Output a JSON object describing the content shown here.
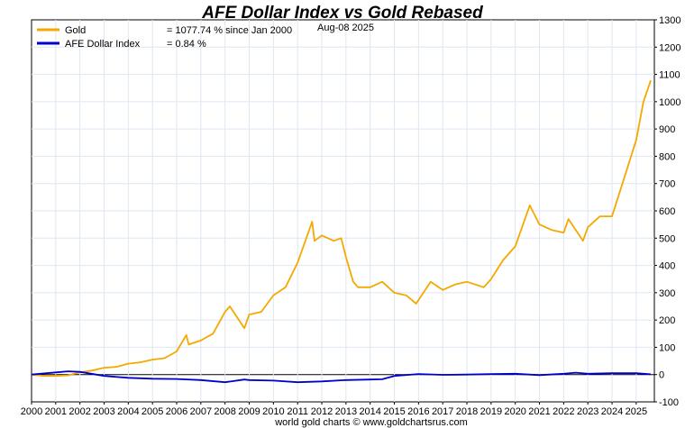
{
  "colors": {
    "gold": "#f5a800",
    "afe": "#0000cc",
    "title": "#1a1acc",
    "grid": "#dde6f0",
    "zero_line": "#000000"
  },
  "chart_data": {
    "type": "line",
    "title": "AFE Dollar Index vs Gold Rebased",
    "date_label": "Aug-08  2025",
    "footer": "world gold charts © www.goldchartsrus.com",
    "xlim": [
      2000.0,
      2025.75
    ],
    "ylim": [
      -100,
      1300
    ],
    "x_ticks": [
      "2000",
      "2001",
      "2002",
      "2003",
      "2004",
      "2005",
      "2006",
      "2007",
      "2008",
      "2009",
      "2010",
      "2011",
      "2012",
      "2013",
      "2014",
      "2015",
      "2016",
      "2017",
      "2018",
      "2019",
      "2020",
      "2021",
      "2022",
      "2023",
      "2024",
      "2025"
    ],
    "y_ticks": [
      -100,
      0,
      100,
      200,
      300,
      400,
      500,
      600,
      700,
      800,
      900,
      1000,
      1100,
      1200,
      1300
    ],
    "y_axis_position": "right",
    "grid": true,
    "legend_position": "top-left",
    "series": [
      {
        "name": "Gold",
        "legend_value": "= 1077.74 % since Jan 2000",
        "x": [
          2000.0,
          2000.5,
          2001.0,
          2001.5,
          2002.0,
          2002.5,
          2003.0,
          2003.5,
          2004.0,
          2004.5,
          2005.0,
          2005.5,
          2006.0,
          2006.4,
          2006.5,
          2007.0,
          2007.5,
          2008.0,
          2008.2,
          2008.8,
          2009.0,
          2009.5,
          2010.0,
          2010.5,
          2011.0,
          2011.6,
          2011.7,
          2012.0,
          2012.5,
          2012.8,
          2013.0,
          2013.3,
          2013.5,
          2014.0,
          2014.5,
          2015.0,
          2015.5,
          2015.9,
          2016.5,
          2017.0,
          2017.5,
          2018.0,
          2018.7,
          2019.0,
          2019.5,
          2020.0,
          2020.6,
          2021.0,
          2021.5,
          2022.0,
          2022.2,
          2022.8,
          2023.0,
          2023.5,
          2024.0,
          2024.5,
          2025.0,
          2025.3,
          2025.6
        ],
        "values": [
          0,
          -5,
          -5,
          -3,
          8,
          15,
          25,
          28,
          40,
          45,
          55,
          60,
          85,
          145,
          110,
          125,
          150,
          230,
          250,
          170,
          220,
          230,
          290,
          320,
          410,
          560,
          490,
          510,
          490,
          500,
          430,
          340,
          320,
          320,
          340,
          300,
          290,
          260,
          340,
          310,
          330,
          340,
          320,
          350,
          420,
          470,
          620,
          550,
          530,
          520,
          570,
          490,
          540,
          580,
          580,
          720,
          860,
          1000,
          1078
        ]
      },
      {
        "name": "AFE Dollar Index",
        "legend_value": "= 0.84 %",
        "x": [
          2000.0,
          2001.0,
          2001.5,
          2002.0,
          2003.0,
          2004.0,
          2005.0,
          2006.0,
          2007.0,
          2008.0,
          2008.8,
          2009.0,
          2010.0,
          2011.0,
          2012.0,
          2013.0,
          2014.0,
          2014.5,
          2015.0,
          2016.0,
          2017.0,
          2018.0,
          2019.0,
          2020.0,
          2021.0,
          2022.0,
          2022.5,
          2023.0,
          2024.0,
          2025.0,
          2025.6
        ],
        "values": [
          0,
          8,
          12,
          10,
          -5,
          -12,
          -15,
          -16,
          -20,
          -28,
          -18,
          -20,
          -22,
          -28,
          -25,
          -20,
          -18,
          -17,
          -5,
          2,
          -1,
          0,
          2,
          3,
          -2,
          3,
          7,
          3,
          5,
          5,
          1
        ]
      }
    ]
  }
}
